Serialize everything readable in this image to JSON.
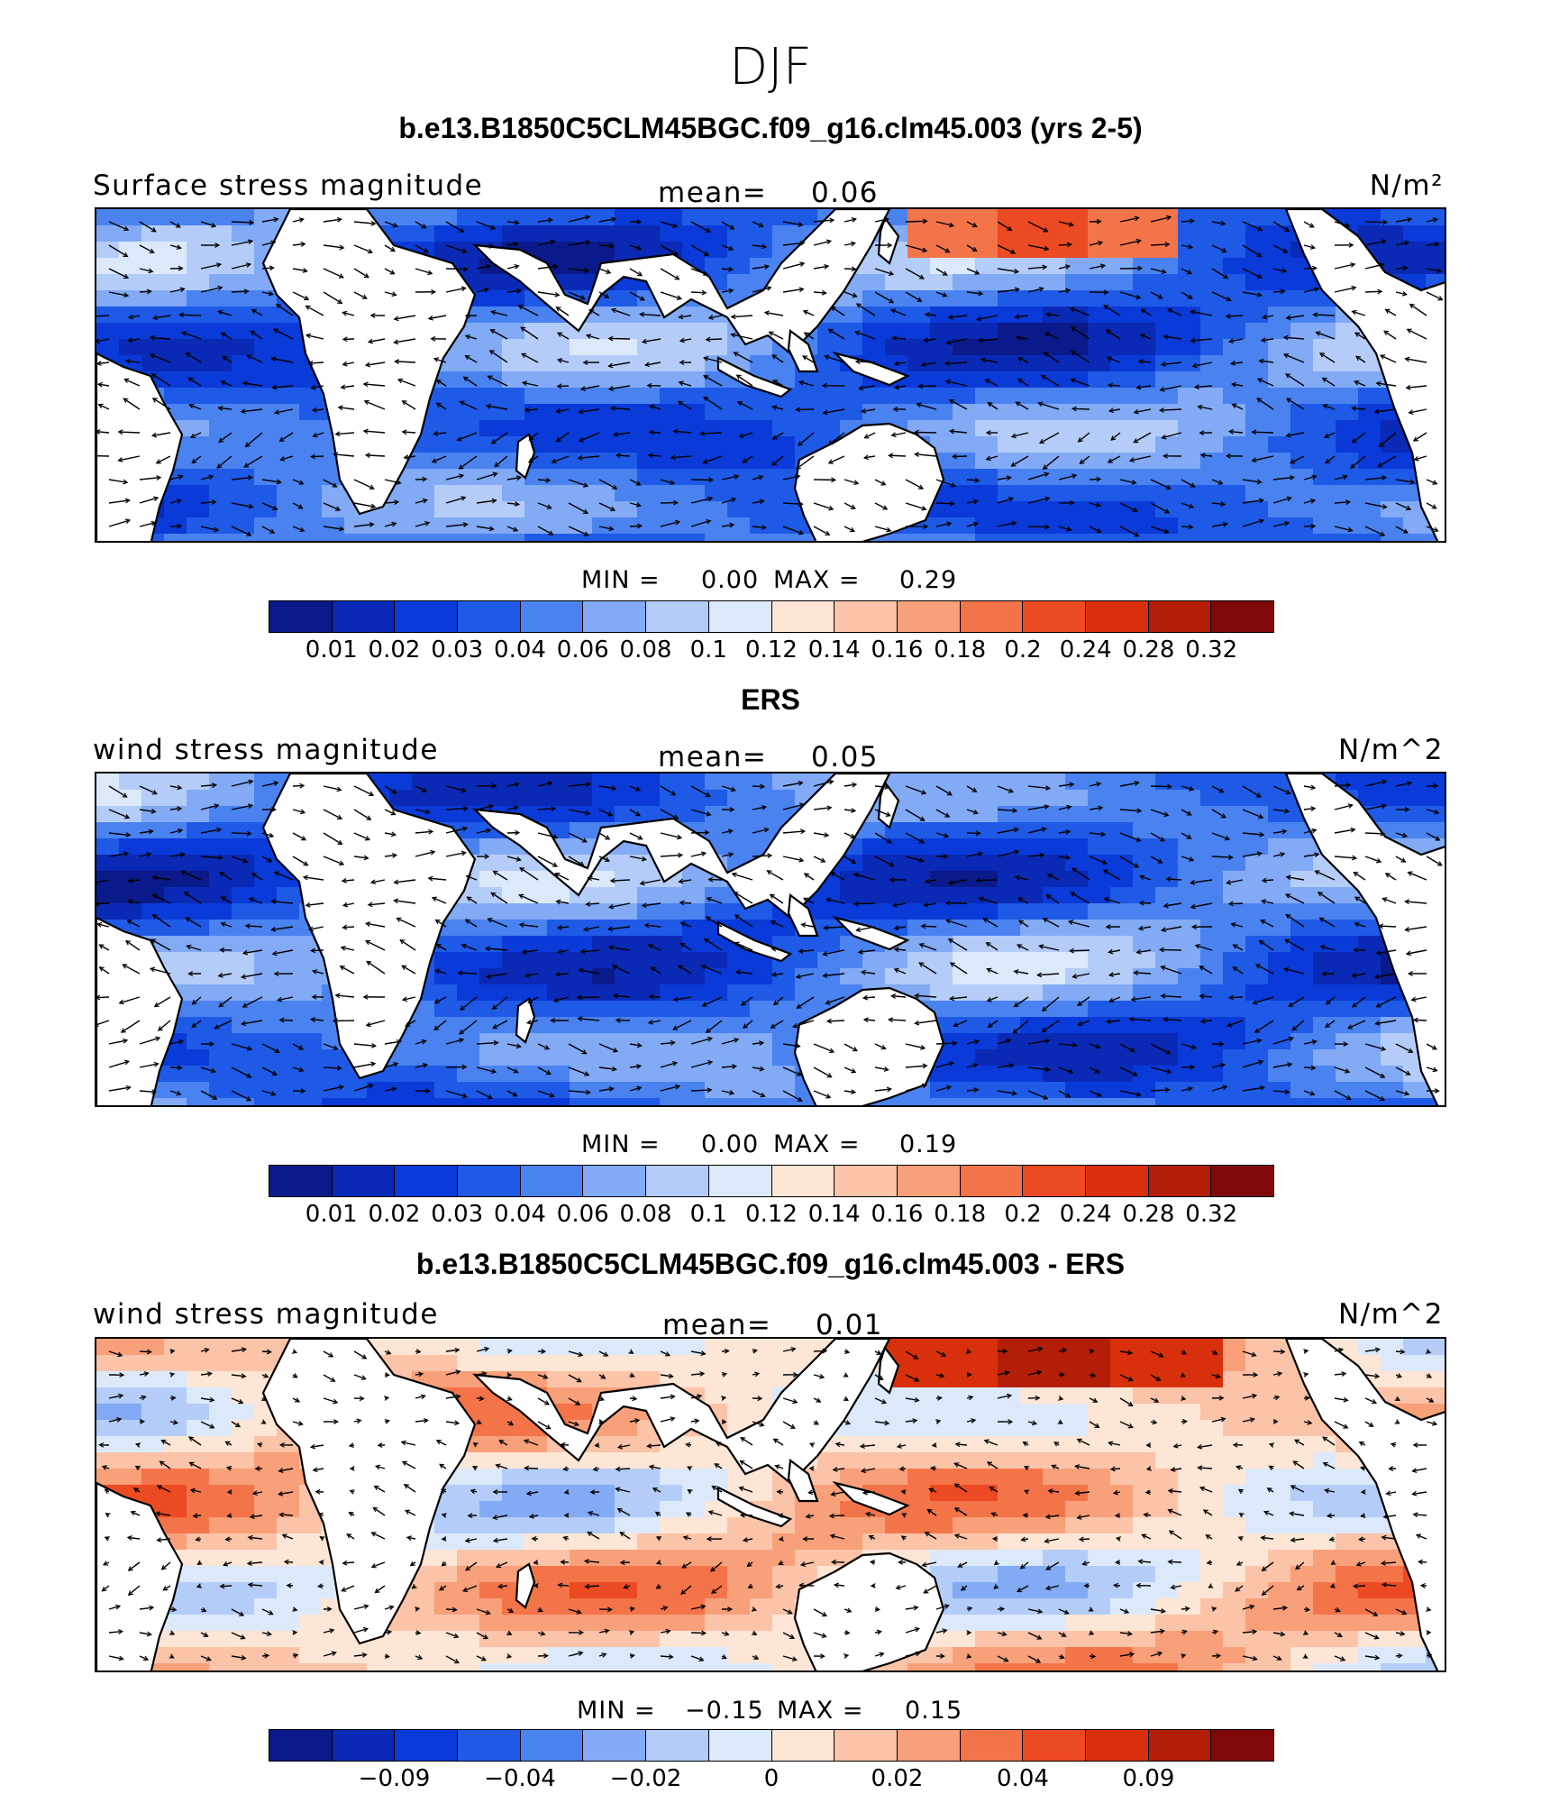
{
  "figure_title": "DJF",
  "colorbar_colors": [
    "#0a1a8a",
    "#0a2ab5",
    "#0a3ad8",
    "#1e5ae6",
    "#4a82f0",
    "#82aaf5",
    "#b4cdf8",
    "#dce9fb",
    "#fde6d5",
    "#fbc3a8",
    "#f8a07a",
    "#f4744a",
    "#ec4a22",
    "#d8300c",
    "#b41e08",
    "#800808"
  ],
  "panels": [
    {
      "title": "b.e13.B1850C5CLM45BGC.f09_g16.clm45.003 (yrs 2-5)",
      "variable": "Surface stress magnitude",
      "mean_label": "mean=",
      "mean_value": "0.06",
      "units": "N/m²",
      "min_label": "MIN =",
      "min_value": "0.00",
      "max_label": "MAX =",
      "max_value": "0.29",
      "tick_labels": [
        "0.01",
        "0.02",
        "0.03",
        "0.04",
        "0.06",
        "0.08",
        "0.1",
        "0.12",
        "0.14",
        "0.16",
        "0.18",
        "0.2",
        "0.24",
        "0.28",
        "0.32"
      ],
      "palette": "blue"
    },
    {
      "title": "ERS",
      "variable": "wind stress magnitude",
      "mean_label": "mean=",
      "mean_value": "0.05",
      "units": "N/m^2",
      "min_label": "MIN =",
      "min_value": "0.00",
      "max_label": "MAX =",
      "max_value": "0.19",
      "tick_labels": [
        "0.01",
        "0.02",
        "0.03",
        "0.04",
        "0.06",
        "0.08",
        "0.1",
        "0.12",
        "0.14",
        "0.16",
        "0.18",
        "0.2",
        "0.24",
        "0.28",
        "0.32"
      ],
      "palette": "blue"
    },
    {
      "title": "b.e13.B1850C5CLM45BGC.f09_g16.clm45.003 - ERS",
      "variable": "wind stress magnitude",
      "mean_label": "mean=",
      "mean_value": "0.01",
      "units": "N/m^2",
      "min_label": "MIN =",
      "min_value": "−0.15",
      "max_label": "MAX =",
      "max_value": "0.15",
      "tick_labels": [
        "−0.09",
        "−0.04",
        "−0.02",
        "0",
        "0.02",
        "0.04",
        "0.09"
      ],
      "palette": "diff"
    }
  ]
}
